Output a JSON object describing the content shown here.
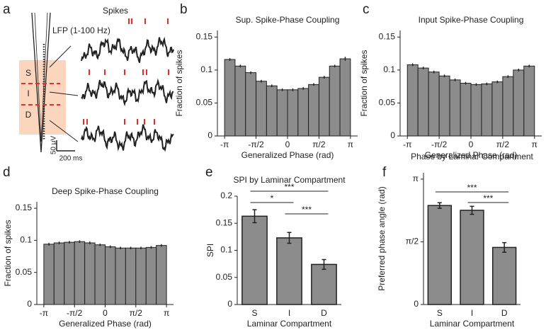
{
  "panel_a": {
    "panel_label": "a",
    "spikes_label": "Spikes",
    "lfp_label": "LFP (1-100 Hz)",
    "layers": [
      "S",
      "I",
      "D"
    ],
    "scale_y": "50 μV",
    "scale_x": "200 ms"
  },
  "chart_data": [
    {
      "type": "histogram",
      "panel_label": "b",
      "title": "Sup. Spike-Phase Coupling",
      "x_label": "Generalized Phase (rad)",
      "y_label": "Fraction of spikes",
      "bins": [
        -3.1416,
        -2.618,
        -2.0944,
        -1.5708,
        -1.0472,
        -0.5236,
        0,
        0.5236,
        1.0472,
        1.5708,
        2.0944,
        2.618,
        3.1416
      ],
      "values": [
        0.116,
        0.106,
        0.096,
        0.083,
        0.076,
        0.07,
        0.07,
        0.072,
        0.078,
        0.089,
        0.106,
        0.117
      ],
      "errors": [
        0.002,
        0.002,
        0.002,
        0.002,
        0.002,
        0.002,
        0.002,
        0.002,
        0.002,
        0.002,
        0.002,
        0.003
      ],
      "color": "#8c8c8c",
      "xlim": [
        -3.5,
        3.5
      ],
      "xticks": [
        {
          "value": -3.1416,
          "label": "-π"
        },
        {
          "value": -1.5708,
          "label": "-π/2"
        },
        0,
        {
          "value": 1.5708,
          "label": "π/2"
        },
        {
          "value": 3.1416,
          "label": "π"
        }
      ],
      "ylim": [
        0,
        0.16
      ],
      "yticks": [
        0,
        0.05,
        0.1,
        0.15
      ]
    },
    {
      "type": "histogram",
      "panel_label": "c",
      "title": "Input Spike-Phase Coupling",
      "x_label": "Generalized Phase (rad)",
      "y_label": "Fraction of spikes",
      "bins": [
        -3.1416,
        -2.618,
        -2.0944,
        -1.5708,
        -1.0472,
        -0.5236,
        0,
        0.5236,
        1.0472,
        1.5708,
        2.0944,
        2.618,
        3.1416
      ],
      "values": [
        0.108,
        0.103,
        0.097,
        0.091,
        0.085,
        0.08,
        0.078,
        0.079,
        0.082,
        0.09,
        0.1,
        0.106
      ],
      "errors": [
        0.002,
        0.002,
        0.002,
        0.002,
        0.002,
        0.002,
        0.002,
        0.002,
        0.002,
        0.002,
        0.002,
        0.002
      ],
      "color": "#8c8c8c",
      "xlim": [
        -3.5,
        3.5
      ],
      "xticks": [
        {
          "value": -3.1416,
          "label": "-π"
        },
        {
          "value": -1.5708,
          "label": "-π/2"
        },
        0,
        {
          "value": 1.5708,
          "label": "π/2"
        },
        {
          "value": 3.1416,
          "label": "π"
        }
      ],
      "ylim": [
        0,
        0.16
      ],
      "yticks": [
        0,
        0.05,
        0.1,
        0.15
      ]
    },
    {
      "type": "histogram",
      "panel_label": "d",
      "title": "Deep Spike-Phase Coupling",
      "x_label": "Generalized Phase (rad)",
      "y_label": "Fraction of spikes",
      "bins": [
        -3.1416,
        -2.618,
        -2.0944,
        -1.5708,
        -1.0472,
        -0.5236,
        0,
        0.5236,
        1.0472,
        1.5708,
        2.0944,
        2.618,
        3.1416
      ],
      "values": [
        0.094,
        0.096,
        0.097,
        0.098,
        0.096,
        0.093,
        0.09,
        0.088,
        0.088,
        0.088,
        0.089,
        0.092
      ],
      "errors": [
        0.002,
        0.002,
        0.002,
        0.002,
        0.002,
        0.002,
        0.002,
        0.002,
        0.002,
        0.002,
        0.002,
        0.002
      ],
      "color": "#8c8c8c",
      "xlim": [
        -3.5,
        3.5
      ],
      "xticks": [
        {
          "value": -3.1416,
          "label": "-π"
        },
        {
          "value": -1.5708,
          "label": "-π/2"
        },
        0,
        {
          "value": 1.5708,
          "label": "π/2"
        },
        {
          "value": 3.1416,
          "label": "π"
        }
      ],
      "ylim": [
        0,
        0.16
      ],
      "yticks": [
        0,
        0.05,
        0.1,
        0.15
      ]
    },
    {
      "type": "bar",
      "panel_label": "e",
      "title": "SPI by Laminar Compartment",
      "x_label": "Laminar Compartment",
      "y_label": "SPI",
      "categories": [
        "S",
        "I",
        "D"
      ],
      "values": [
        0.163,
        0.123,
        0.074
      ],
      "errors": [
        0.012,
        0.01,
        0.009
      ],
      "color": "#8c8c8c",
      "ylim": [
        0,
        0.2
      ],
      "yticks": [
        0,
        0.05,
        0.1,
        0.15,
        0.2
      ],
      "annotations": [
        {
          "text": "***",
          "between": [
            "S",
            "D"
          ]
        },
        {
          "text": "*",
          "between": [
            "S",
            "I"
          ]
        },
        {
          "text": "***",
          "between": [
            "I",
            "D"
          ]
        }
      ]
    },
    {
      "type": "bar",
      "panel_label": "f",
      "title": "Phase by Laminar Compartment",
      "x_label": "Laminar Compartment",
      "y_label": "Preferred phase angle (rad)",
      "categories": [
        "S",
        "I",
        "D"
      ],
      "values": [
        2.48,
        2.36,
        1.43
      ],
      "errors": [
        0.07,
        0.1,
        0.12
      ],
      "color": "#8c8c8c",
      "ylim": [
        0,
        3.3
      ],
      "yticks": [
        0,
        {
          "value": 1.5708,
          "label": "π/2"
        },
        {
          "value": 3.1416,
          "label": "π"
        }
      ],
      "annotations": [
        {
          "text": "***",
          "between": [
            "S",
            "D"
          ]
        },
        {
          "text": "***",
          "between": [
            "I",
            "D"
          ]
        }
      ]
    }
  ]
}
